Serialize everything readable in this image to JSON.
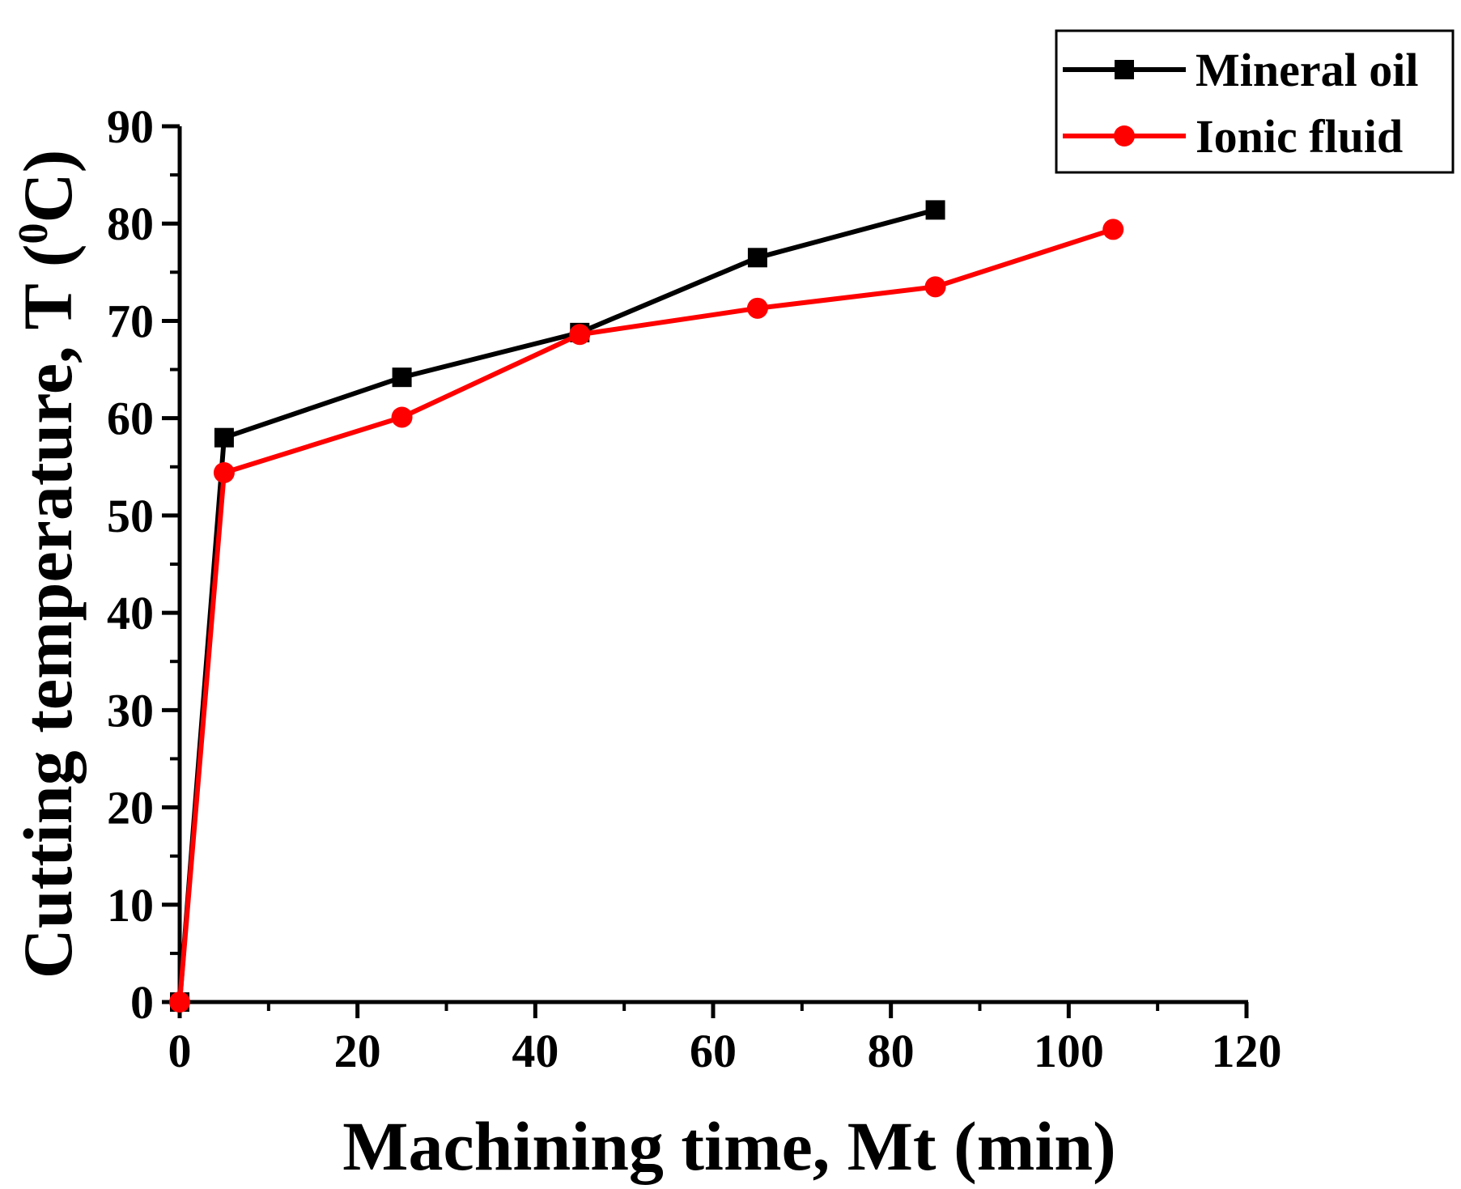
{
  "chart_data": {
    "type": "line",
    "title": "",
    "xlabel": "Machining time, Mt (min)",
    "ylabel_main": "Cutting temperature, T (",
    "ylabel_sup": "0",
    "ylabel_end": "C)",
    "xlim": [
      0,
      120
    ],
    "ylim": [
      0,
      90
    ],
    "x_major_ticks": [
      0,
      20,
      40,
      60,
      80,
      100,
      120
    ],
    "x_tick_labels": [
      "0",
      "20",
      "40",
      "60",
      "80",
      "100",
      "120"
    ],
    "x_minor_ticks": [
      10,
      30,
      50,
      70,
      90,
      110
    ],
    "y_major_ticks": [
      0,
      10,
      20,
      30,
      40,
      50,
      60,
      70,
      80,
      90
    ],
    "y_tick_labels": [
      "0",
      "10",
      "20",
      "30",
      "40",
      "50",
      "60",
      "70",
      "80",
      "90"
    ],
    "y_minor_ticks": [
      5,
      15,
      25,
      35,
      45,
      55,
      65,
      75,
      85
    ],
    "grid": false,
    "legend_position": "top-right",
    "series": [
      {
        "name": "Mineral oil",
        "color": "#000000",
        "marker": "square",
        "x": [
          0,
          5,
          25,
          45,
          65,
          85
        ],
        "y": [
          0,
          58,
          64.2,
          68.8,
          76.5,
          81.4
        ]
      },
      {
        "name": "Ionic fluid",
        "color": "#ff0000",
        "marker": "circle",
        "x": [
          0,
          5,
          25,
          45,
          65,
          85,
          105
        ],
        "y": [
          0,
          54.4,
          60.1,
          68.6,
          71.3,
          73.5,
          79.4
        ]
      }
    ]
  }
}
